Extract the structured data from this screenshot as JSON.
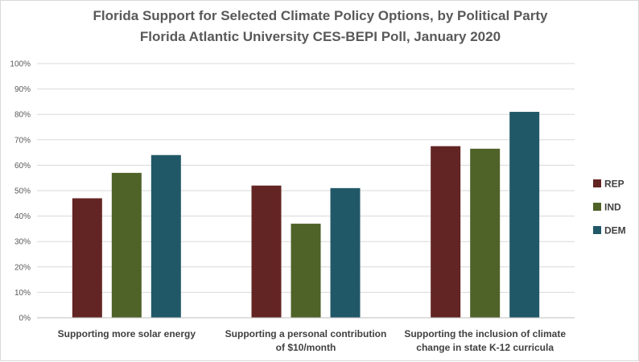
{
  "chart_data": {
    "type": "bar",
    "title": "Florida Support for Selected Climate Policy Options, by Political Party",
    "subtitle": "Florida Atlantic University CES-BEPI Poll, January 2020",
    "categories": [
      [
        "Supporting more solar energy"
      ],
      [
        "Supporting a personal contribution",
        "of $10/month"
      ],
      [
        "Supporting the inclusion of climate",
        "change in state K-12 curricula"
      ]
    ],
    "series": [
      {
        "name": "REP",
        "color": "#632523",
        "values": [
          47,
          52,
          67.5
        ]
      },
      {
        "name": "IND",
        "color": "#4f6228",
        "values": [
          57,
          37,
          66.5
        ]
      },
      {
        "name": "DEM",
        "color": "#215868",
        "values": [
          64,
          51,
          81
        ]
      }
    ],
    "ylim": [
      0,
      100
    ],
    "yticks": [
      "0%",
      "10%",
      "20%",
      "30%",
      "40%",
      "50%",
      "60%",
      "70%",
      "80%",
      "90%",
      "100%"
    ],
    "grid": true,
    "legend_position": "right"
  }
}
